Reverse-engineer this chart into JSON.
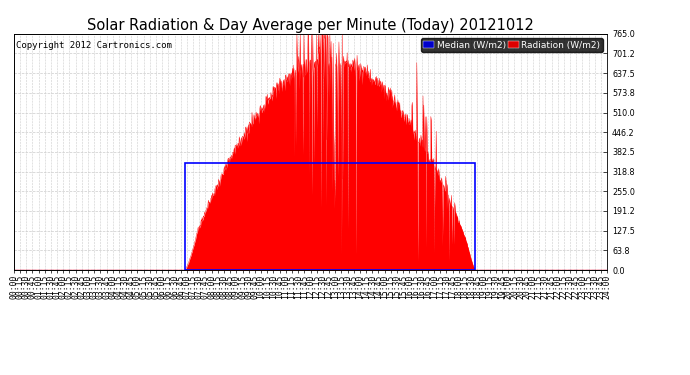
{
  "title": "Solar Radiation & Day Average per Minute (Today) 20121012",
  "copyright": "Copyright 2012 Cartronics.com",
  "legend_median_label": "Median (W/m2)",
  "legend_radiation_label": "Radiation (W/m2)",
  "legend_median_color": "#0000cc",
  "legend_radiation_color": "#dd0000",
  "bg_color": "#ffffff",
  "plot_bg_color": "#ffffff",
  "grid_color": "#cccccc",
  "yticks": [
    0.0,
    63.8,
    127.5,
    191.2,
    255.0,
    318.8,
    382.5,
    446.2,
    510.0,
    573.8,
    637.5,
    701.2,
    765.0
  ],
  "ymax": 765.0,
  "ymin": 0.0,
  "radiation_color": "#ff0000",
  "blue_color": "#0000ff",
  "sunrise_minute": 415,
  "sunset_minute": 1120,
  "day_avg_value": 346.0,
  "title_fontsize": 10.5,
  "copyright_fontsize": 6.5,
  "tick_fontsize": 5.8,
  "legend_fontsize": 6.5,
  "tick_interval_minutes": 15
}
